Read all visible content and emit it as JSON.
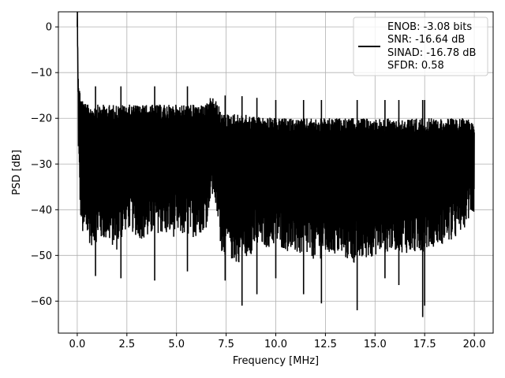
{
  "chart_data": {
    "type": "line",
    "xlabel": "Frequency [MHz]",
    "ylabel": "PSD [dB]",
    "xlim": [
      -0.95,
      20.95
    ],
    "ylim": [
      -67,
      3.3
    ],
    "xticks": [
      0.0,
      2.5,
      5.0,
      7.5,
      10.0,
      12.5,
      15.0,
      17.5,
      20.0
    ],
    "xtick_labels": [
      "0.0",
      "2.5",
      "5.0",
      "7.5",
      "10.0",
      "12.5",
      "15.0",
      "17.5",
      "20.0"
    ],
    "yticks": [
      0,
      -10,
      -20,
      -30,
      -40,
      -50,
      -60
    ],
    "ytick_labels": [
      "0",
      "−10",
      "−20",
      "−30",
      "−40",
      "−50",
      "−60"
    ],
    "grid": true,
    "legend_position": "top-right",
    "legend_lines": [
      "ENOB: -3.08 bits",
      "SNR: -16.64 dB",
      "SINAD: -16.78 dB",
      "SFDR: 0.58"
    ],
    "series": [
      {
        "color": "#000000",
        "envelope_x": [
          0.0,
          0.05,
          0.1,
          0.2,
          0.3,
          0.5,
          0.75,
          1.0,
          1.5,
          2.0,
          2.5,
          3.0,
          3.5,
          4.0,
          4.5,
          5.0,
          5.5,
          6.0,
          6.5,
          6.7,
          6.9,
          7.1,
          7.3,
          7.5,
          8.0,
          9.0,
          10.0,
          11.0,
          12.0,
          13.0,
          14.0,
          15.0,
          16.0,
          17.0,
          18.0,
          19.0,
          20.0
        ],
        "envelope_upper": [
          0,
          -9,
          -13,
          -15,
          -16,
          -17,
          -17,
          -17,
          -17,
          -17,
          -17,
          -17,
          -17,
          -17,
          -17,
          -17,
          -17,
          -17,
          -17,
          -15.5,
          -15.5,
          -17,
          -19,
          -19,
          -19,
          -19.5,
          -20,
          -20,
          -20,
          -20,
          -20,
          -20,
          -20,
          -20,
          -20,
          -20,
          -20
        ],
        "envelope_lower": [
          -2,
          -32,
          -43,
          -50,
          -53,
          -53,
          -54,
          -53,
          -53,
          -55,
          -50,
          -52,
          -53,
          -51,
          -52,
          -52,
          -52,
          -52,
          -50,
          -44,
          -44,
          -50,
          -56,
          -56,
          -58,
          -55,
          -54,
          -56,
          -57,
          -56,
          -58,
          -56,
          -55,
          -56,
          -54,
          -53,
          -47
        ],
        "spikes": [
          [
            0.92,
            -54.5
          ],
          [
            2.2,
            -55
          ],
          [
            3.9,
            -55.5
          ],
          [
            5.55,
            -53.5
          ],
          [
            7.45,
            -55.5
          ],
          [
            8.3,
            -61
          ],
          [
            9.05,
            -58.5
          ],
          [
            10.0,
            -55
          ],
          [
            11.4,
            -58.5
          ],
          [
            12.3,
            -60.5
          ],
          [
            14.1,
            -62
          ],
          [
            15.5,
            -55
          ],
          [
            16.2,
            -56.5
          ],
          [
            17.4,
            -63.5
          ],
          [
            17.5,
            -61
          ]
        ]
      }
    ]
  }
}
